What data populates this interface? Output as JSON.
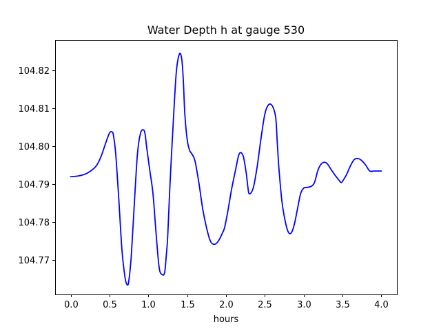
{
  "chart_data": {
    "type": "line",
    "title": "Water Depth h at gauge 530",
    "xlabel": "hours",
    "ylabel": "",
    "xlim": [
      -0.2,
      4.2
    ],
    "ylim": [
      104.761,
      104.828
    ],
    "grid": false,
    "legend": "none",
    "x_ticks": [
      0.0,
      0.5,
      1.0,
      1.5,
      2.0,
      2.5,
      3.0,
      3.5,
      4.0
    ],
    "x_tick_labels": [
      "0.0",
      "0.5",
      "1.0",
      "1.5",
      "2.0",
      "2.5",
      "3.0",
      "3.5",
      "4.0"
    ],
    "y_ticks": [
      104.77,
      104.78,
      104.79,
      104.8,
      104.81,
      104.82
    ],
    "y_tick_labels": [
      "104.77",
      "104.78",
      "104.79",
      "104.80",
      "104.81",
      "104.82"
    ],
    "colors": {
      "line": "#0000ff"
    },
    "series": [
      {
        "x": [
          0.0,
          0.1,
          0.2,
          0.3,
          0.35,
          0.4,
          0.45,
          0.5,
          0.53,
          0.55,
          0.58,
          0.62,
          0.66,
          0.7,
          0.73,
          0.75,
          0.78,
          0.82,
          0.86,
          0.9,
          0.94,
          0.96,
          0.98,
          1.02,
          1.06,
          1.1,
          1.14,
          1.18,
          1.21,
          1.23,
          1.25,
          1.28,
          1.32,
          1.36,
          1.4,
          1.43,
          1.45,
          1.47,
          1.5,
          1.53,
          1.56,
          1.6,
          1.65,
          1.7,
          1.75,
          1.8,
          1.85,
          1.9,
          1.95,
          1.98,
          2.02,
          2.07,
          2.12,
          2.17,
          2.22,
          2.26,
          2.28,
          2.3,
          2.35,
          2.4,
          2.45,
          2.5,
          2.55,
          2.6,
          2.64,
          2.66,
          2.68,
          2.72,
          2.76,
          2.8,
          2.84,
          2.88,
          2.92,
          2.96,
          3.0,
          3.05,
          3.1,
          3.14,
          3.18,
          3.22,
          3.26,
          3.3,
          3.35,
          3.4,
          3.45,
          3.48,
          3.5,
          3.55,
          3.6,
          3.65,
          3.7,
          3.75,
          3.8,
          3.85,
          3.9,
          3.95,
          3.98,
          4.0
        ],
        "values": [
          104.792,
          104.7922,
          104.7928,
          104.7942,
          104.7955,
          104.7978,
          104.8008,
          104.8035,
          104.8038,
          104.803,
          104.798,
          104.786,
          104.7728,
          104.7655,
          104.7635,
          104.7648,
          104.771,
          104.785,
          104.798,
          104.8035,
          104.8043,
          104.803,
          104.7995,
          104.7935,
          104.7875,
          104.777,
          104.768,
          104.7662,
          104.7668,
          104.771,
          104.7765,
          104.7905,
          104.806,
          104.8195,
          104.8243,
          104.823,
          104.8175,
          104.8085,
          104.8018,
          104.799,
          104.798,
          104.7962,
          104.7905,
          104.7835,
          104.7785,
          104.775,
          104.7742,
          104.775,
          104.777,
          104.7785,
          104.7825,
          104.7885,
          104.7935,
          104.798,
          104.7975,
          104.793,
          104.7895,
          104.7875,
          104.789,
          104.7945,
          104.802,
          104.8085,
          104.811,
          104.8105,
          104.8075,
          104.801,
          104.7945,
          104.7855,
          104.7805,
          104.7775,
          104.7772,
          104.7795,
          104.7835,
          104.7875,
          104.789,
          104.7892,
          104.7895,
          104.7905,
          104.7935,
          104.7952,
          104.7958,
          104.7955,
          104.794,
          104.7925,
          104.7912,
          104.7905,
          104.7908,
          104.7925,
          104.7948,
          104.7965,
          104.7968,
          104.7962,
          104.795,
          104.7935,
          104.7935,
          104.7935,
          104.7935,
          104.7935
        ]
      }
    ]
  }
}
